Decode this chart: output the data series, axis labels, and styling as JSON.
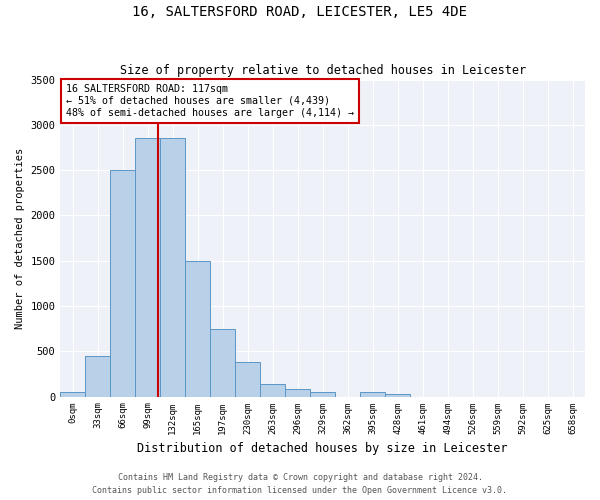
{
  "title1": "16, SALTERSFORD ROAD, LEICESTER, LE5 4DE",
  "title2": "Size of property relative to detached houses in Leicester",
  "xlabel": "Distribution of detached houses by size in Leicester",
  "ylabel": "Number of detached properties",
  "bar_labels": [
    "0sqm",
    "33sqm",
    "66sqm",
    "99sqm",
    "132sqm",
    "165sqm",
    "197sqm",
    "230sqm",
    "263sqm",
    "296sqm",
    "329sqm",
    "362sqm",
    "395sqm",
    "428sqm",
    "461sqm",
    "494sqm",
    "526sqm",
    "559sqm",
    "592sqm",
    "625sqm",
    "658sqm"
  ],
  "bar_values": [
    50,
    450,
    2500,
    2850,
    2850,
    1500,
    750,
    380,
    140,
    80,
    50,
    0,
    50,
    30,
    0,
    0,
    0,
    0,
    0,
    0,
    0
  ],
  "bar_color": "#b8d0e8",
  "bar_edge_color": "#5a96c8",
  "annotation_text": "16 SALTERSFORD ROAD: 117sqm\n← 51% of detached houses are smaller (4,439)\n48% of semi-detached houses are larger (4,114) →",
  "annotation_box_color": "#ffffff",
  "annotation_border_color": "#cc0000",
  "vline_color": "#cc0000",
  "vline_x_bin": 3,
  "ylim": [
    0,
    3500
  ],
  "yticks": [
    0,
    500,
    1000,
    1500,
    2000,
    2500,
    3000,
    3500
  ],
  "bg_color": "#eef2f8",
  "footer1": "Contains HM Land Registry data © Crown copyright and database right 2024.",
  "footer2": "Contains public sector information licensed under the Open Government Licence v3.0."
}
